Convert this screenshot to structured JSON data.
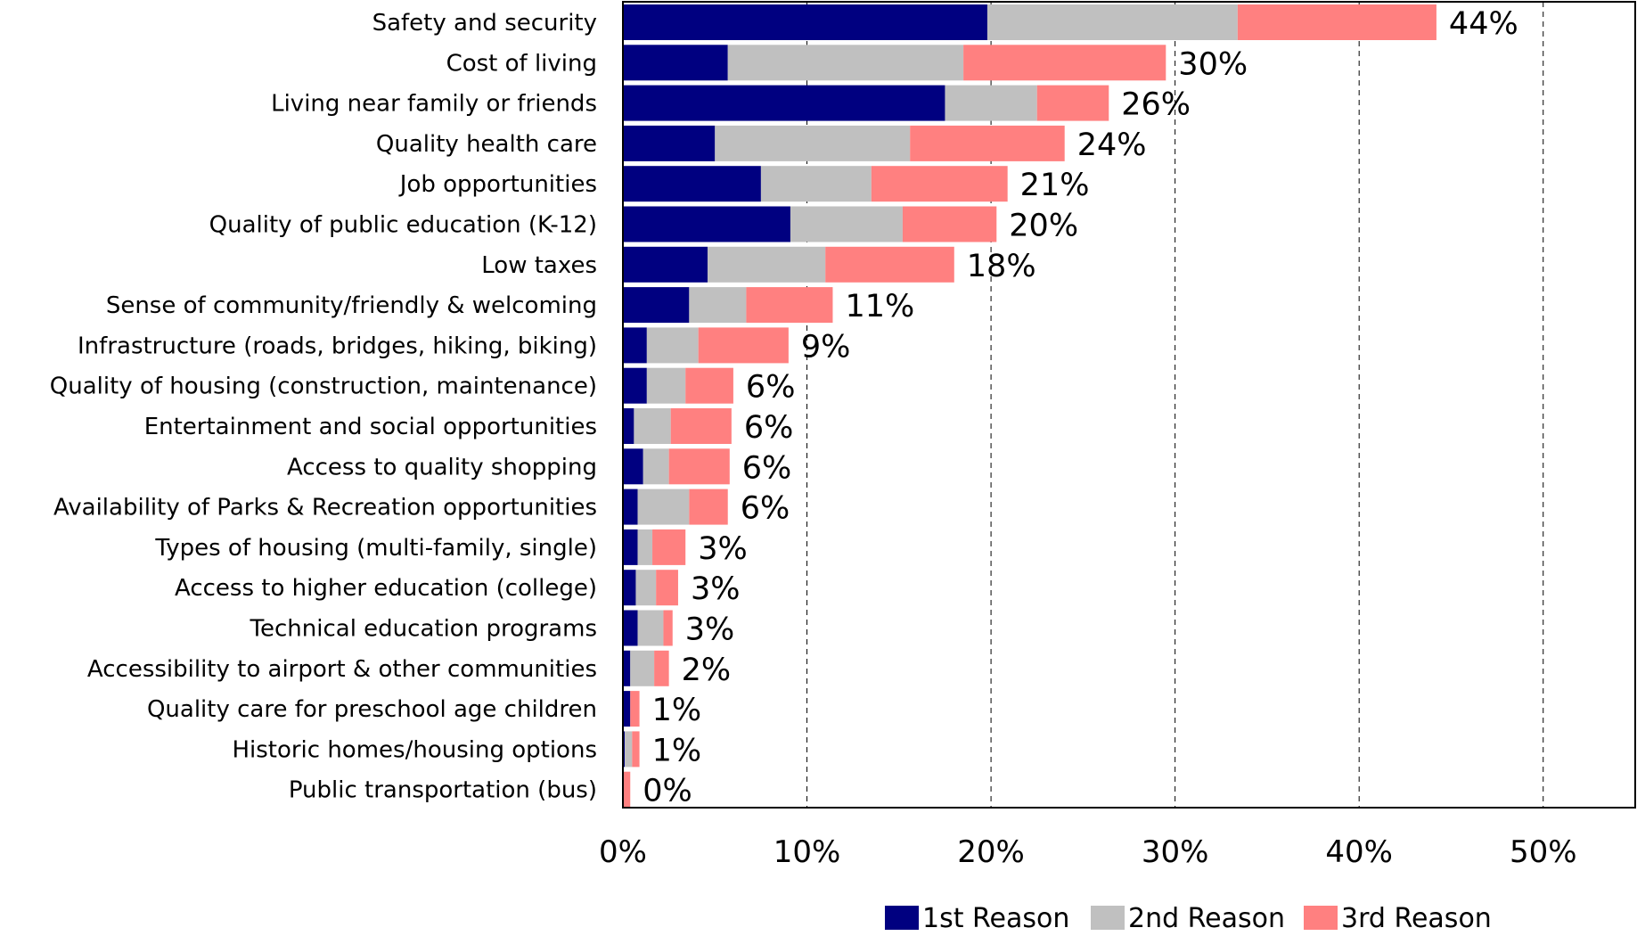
{
  "chart_data": {
    "type": "bar",
    "orientation": "horizontal",
    "stacked": true,
    "categories": [
      "Safety and security",
      "Cost of living",
      "Living near family or friends",
      "Quality health care",
      "Job opportunities",
      "Quality of public education (K-12)",
      "Low taxes",
      "Sense of community/friendly & welcoming",
      "Infrastructure (roads, bridges, hiking, biking)",
      "Quality of housing (construction, maintenance)",
      "Entertainment and social opportunities",
      "Access to quality shopping",
      "Availability of Parks & Recreation opportunities",
      "Types of housing (multi-family, single)",
      "Access to higher education (college)",
      "Technical education programs",
      "Accessibility to airport & other communities",
      "Quality care for preschool age children",
      "Historic homes/housing options",
      "Public transportation (bus)"
    ],
    "series": [
      {
        "name": "1st Reason",
        "color": "#000080",
        "values": [
          19.8,
          5.7,
          17.5,
          5.0,
          7.5,
          9.1,
          4.6,
          3.6,
          1.3,
          1.3,
          0.6,
          1.1,
          0.8,
          0.8,
          0.7,
          0.8,
          0.4,
          0.4,
          0.1,
          0.0
        ]
      },
      {
        "name": "2nd Reason",
        "color": "#C0C0C0",
        "values": [
          13.6,
          12.8,
          5.0,
          10.6,
          6.0,
          6.1,
          6.4,
          3.1,
          2.8,
          2.1,
          2.0,
          1.4,
          2.8,
          0.8,
          1.1,
          1.4,
          1.3,
          0.0,
          0.4,
          0.0
        ]
      },
      {
        "name": "3rd Reason",
        "color": "#FF8080",
        "values": [
          10.8,
          11.0,
          3.9,
          8.4,
          7.4,
          5.1,
          7.0,
          4.7,
          4.9,
          2.6,
          3.3,
          3.3,
          2.1,
          1.8,
          1.2,
          0.5,
          0.8,
          0.5,
          0.4,
          0.4
        ]
      }
    ],
    "total_labels": [
      "44%",
      "30%",
      "26%",
      "24%",
      "21%",
      "20%",
      "18%",
      "11%",
      "9%",
      "6%",
      "6%",
      "6%",
      "6%",
      "3%",
      "3%",
      "3%",
      "2%",
      "1%",
      "1%",
      "0%"
    ],
    "xlim": [
      0,
      55
    ],
    "x_ticks": [
      0,
      10,
      20,
      30,
      40,
      50
    ],
    "x_tick_labels": [
      "0%",
      "10%",
      "20%",
      "30%",
      "40%",
      "50%"
    ],
    "grid": "vertical dashed",
    "legend_position": "bottom",
    "title": "",
    "xlabel": "",
    "ylabel": ""
  }
}
